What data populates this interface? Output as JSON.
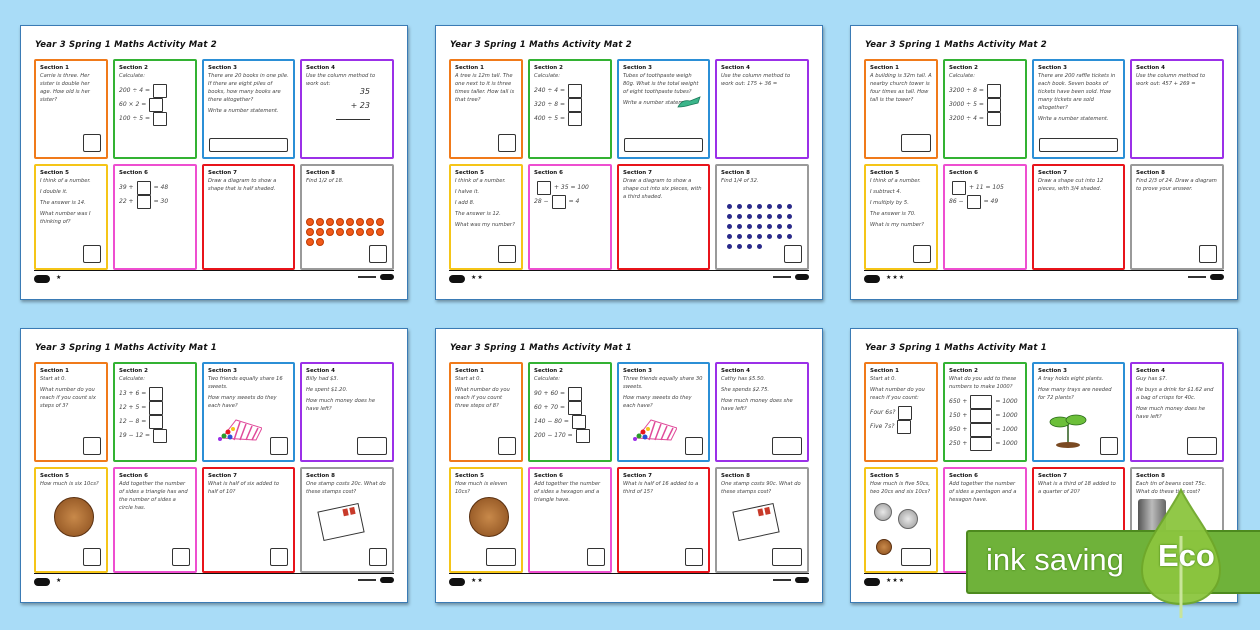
{
  "mats": [
    {
      "title": "Year 3 Spring 1 Maths Activity Mat 2",
      "difficulty": "★",
      "sections": [
        {
          "head": "Section 1",
          "lines": [
            "Carrie is three. Her sister is double her age. How old is her sister?"
          ]
        },
        {
          "head": "Section 2",
          "lines": [
            "Calculate:"
          ],
          "equations": [
            "200 ÷ 4 =",
            "60 × 2 =",
            "100 ÷ 5 ="
          ]
        },
        {
          "head": "Section 3",
          "lines": [
            "There are 20 books in one pile. If there are eight piles of books, how many books are there altogether?",
            "Write a number statement."
          ]
        },
        {
          "head": "Section 4",
          "lines": [
            "Use the column method to work out:"
          ],
          "column": [
            "35",
            "+ 23"
          ]
        },
        {
          "head": "Section 5",
          "lines": [
            "I think of a number.",
            "I double it.",
            "The answer is 14.",
            "What number was I thinking of?"
          ]
        },
        {
          "head": "Section 6",
          "lines": [],
          "equations": [
            "39 +  [ ]  = 48",
            "22 +  [ ]  = 30"
          ]
        },
        {
          "head": "Section 7",
          "lines": [
            "Draw a diagram to show a shape that is half shaded."
          ]
        },
        {
          "head": "Section 8",
          "lines": [
            "Find 1/2 of 18."
          ],
          "dots": 18
        }
      ]
    },
    {
      "title": "Year 3 Spring 1 Maths Activity Mat 2",
      "difficulty": "★★",
      "sections": [
        {
          "head": "Section 1",
          "lines": [
            "A tree is 12m tall. The one next to it is three times taller. How tall is that tree?"
          ]
        },
        {
          "head": "Section 2",
          "lines": [
            "Calculate:"
          ],
          "equations": [
            "240 ÷ 4 =",
            "320 ÷ 8 =",
            "400 ÷ 5 ="
          ]
        },
        {
          "head": "Section 3",
          "lines": [
            "Tubes of toothpaste weigh 80g. What is the total weight of eight toothpaste tubes?",
            "Write a number statement."
          ]
        },
        {
          "head": "Section 4",
          "lines": [
            "Use the column method to work out: 175 + 36 ="
          ]
        },
        {
          "head": "Section 5",
          "lines": [
            "I think of a number.",
            "I halve it.",
            "I add 8.",
            "The answer is 12.",
            "What was my number?"
          ]
        },
        {
          "head": "Section 6",
          "lines": [],
          "equations": [
            "[ ] + 35 = 100",
            "28 − [ ] = 4"
          ]
        },
        {
          "head": "Section 7",
          "lines": [
            "Draw a diagram to show a shape cut into six pieces, with a third shaded."
          ]
        },
        {
          "head": "Section 8",
          "lines": [
            "Find 1/4 of 32."
          ],
          "dots": 32
        }
      ]
    },
    {
      "title": "Year 3 Spring 1 Maths Activity Mat 2",
      "difficulty": "★★★",
      "sections": [
        {
          "head": "Section 1",
          "lines": [
            "A building is 32m tall. A nearby church tower is four times as tall. How tall is the tower?"
          ]
        },
        {
          "head": "Section 2",
          "lines": [
            "Calculate:"
          ],
          "equations": [
            "3200 ÷ 8 =",
            "3000 ÷ 5 =",
            "3200 ÷ 4 ="
          ]
        },
        {
          "head": "Section 3",
          "lines": [
            "There are 200 raffle tickets in each book. Seven books of tickets have been sold. How many tickets are sold altogether?",
            "Write a number statement."
          ]
        },
        {
          "head": "Section 4",
          "lines": [
            "Use the column method to work out: 457 + 269 ="
          ]
        },
        {
          "head": "Section 5",
          "lines": [
            "I think of a number.",
            "I subtract 4.",
            "I multiply by 5.",
            "The answer is 70.",
            "What is my number?"
          ]
        },
        {
          "head": "Section 6",
          "lines": [],
          "equations": [
            "[ ] + 11 = 105",
            "86 − [ ] = 49"
          ]
        },
        {
          "head": "Section 7",
          "lines": [
            "Draw a shape cut into 12 pieces, with 3/4 shaded."
          ]
        },
        {
          "head": "Section 8",
          "lines": [
            "Find 2/3 of 24. Draw a diagram to prove your answer."
          ]
        }
      ]
    },
    {
      "title": "Year 3 Spring 1 Maths Activity Mat 1",
      "difficulty": "★",
      "sections": [
        {
          "head": "Section 1",
          "lines": [
            "Start at 0.",
            "What number do you reach if you count six steps of 3?"
          ]
        },
        {
          "head": "Section 2",
          "lines": [
            "Calculate:"
          ],
          "equations": [
            "13 + 6 =",
            "12 + 5 =",
            "12 − 8 =",
            "19 − 12 ="
          ]
        },
        {
          "head": "Section 3",
          "lines": [
            "Two friends equally share 16 sweets.",
            "How many sweets do they each have?"
          ]
        },
        {
          "head": "Section 4",
          "lines": [
            "Billy had $3.",
            "He spent $1.20.",
            "How much money does he have left?"
          ]
        },
        {
          "head": "Section 5",
          "lines": [
            "How much is six 10cs?"
          ]
        },
        {
          "head": "Section 6",
          "lines": [
            "Add together the number of sides a triangle has and the number of sides a circle has."
          ]
        },
        {
          "head": "Section 7",
          "lines": [
            "What is half of six added to half of 10?"
          ]
        },
        {
          "head": "Section 8",
          "lines": [
            "One stamp costs 20c. What do these stamps cost?"
          ]
        }
      ]
    },
    {
      "title": "Year 3 Spring 1 Maths Activity Mat 1",
      "difficulty": "★★",
      "sections": [
        {
          "head": "Section 1",
          "lines": [
            "Start at 0.",
            "What number do you reach if you count three steps of 8?"
          ]
        },
        {
          "head": "Section 2",
          "lines": [
            "Calculate:"
          ],
          "equations": [
            "90 + 60 =",
            "60 + 70 =",
            "140 − 80 =",
            "200 − 170 ="
          ]
        },
        {
          "head": "Section 3",
          "lines": [
            "Three friends equally share 30 sweets.",
            "How many sweets do they each have?"
          ]
        },
        {
          "head": "Section 4",
          "lines": [
            "Cathy has $5.50.",
            "She spends $2.75.",
            "How much money does she have left?"
          ]
        },
        {
          "head": "Section 5",
          "lines": [
            "How much is eleven 10cs?"
          ]
        },
        {
          "head": "Section 6",
          "lines": [
            "Add together the number of sides a hexagon and a triangle have."
          ]
        },
        {
          "head": "Section 7",
          "lines": [
            "What is half of 16 added to a third of 15?"
          ]
        },
        {
          "head": "Section 8",
          "lines": [
            "One stamp costs 90c. What do these stamps cost?"
          ]
        }
      ]
    },
    {
      "title": "Year 3 Spring 1 Maths Activity Mat 1",
      "difficulty": "★★★",
      "sections": [
        {
          "head": "Section 1",
          "lines": [
            "Start at 0.",
            "What number do you reach if you count:"
          ],
          "equations": [
            "Four 6s?",
            "Five 7s?"
          ]
        },
        {
          "head": "Section 2",
          "lines": [
            "What do you add to these numbers to make 1000?"
          ],
          "equations": [
            "650 + [ ] = 1000",
            "150 + [ ] = 1000",
            "950 + [ ] = 1000",
            "250 + [ ] = 1000"
          ]
        },
        {
          "head": "Section 3",
          "lines": [
            "A tray holds eight plants.",
            "How many trays are needed for 72 plants?"
          ]
        },
        {
          "head": "Section 4",
          "lines": [
            "Guy has $7.",
            "He buys a drink for $1.62 and a bag of crisps for 40c.",
            "How much money does he have left?"
          ]
        },
        {
          "head": "Section 5",
          "lines": [
            "How much is five 50cs, two 20cs and six 10cs?"
          ]
        },
        {
          "head": "Section 6",
          "lines": [
            "Add together the number of sides a pentagon and a hexagon have."
          ]
        },
        {
          "head": "Section 7",
          "lines": [
            "What is a third of 18 added to a quarter of 20?"
          ]
        },
        {
          "head": "Section 8",
          "lines": [
            "Each tin of beans cost 75c. What do these tins cost?"
          ]
        }
      ]
    }
  ],
  "badge": {
    "text": "ink saving",
    "eco": "Eco"
  },
  "colors": {
    "background": "#a9dcf7",
    "badge_green": "#6fb23a",
    "leaf_green": "#8cc63f"
  }
}
